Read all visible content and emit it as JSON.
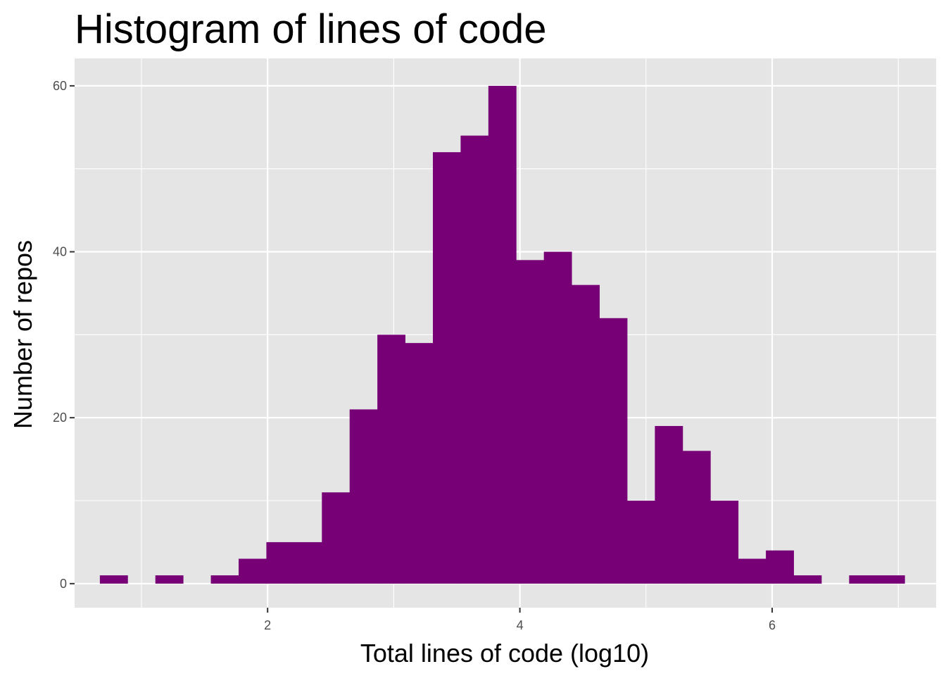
{
  "chart_data": {
    "type": "bar",
    "title": "Histogram of lines of code",
    "xlabel": "Total lines of code (log10)",
    "ylabel": "Number of repos",
    "xlim": [
      0.47,
      7.3
    ],
    "ylim": [
      -2.9,
      63.3
    ],
    "x_ticks": [
      2,
      4,
      6
    ],
    "x_tick_labels": [
      "2",
      "4",
      "6"
    ],
    "y_ticks": [
      0,
      20,
      40,
      60
    ],
    "y_tick_labels": [
      "0",
      "20",
      "40",
      "60"
    ],
    "bin_width": 0.2196,
    "bin_centers": [
      0.78,
      1.0,
      1.22,
      1.44,
      1.66,
      1.88,
      2.1,
      2.32,
      2.54,
      2.76,
      2.98,
      3.2,
      3.42,
      3.64,
      3.86,
      4.08,
      4.3,
      4.52,
      4.74,
      4.96,
      5.18,
      5.4,
      5.62,
      5.84,
      6.06,
      6.28,
      6.5,
      6.72,
      6.94
    ],
    "values": [
      1,
      0,
      1,
      0,
      1,
      3,
      5,
      5,
      11,
      21,
      30,
      29,
      52,
      54,
      60,
      39,
      40,
      36,
      32,
      10,
      19,
      16,
      10,
      3,
      4,
      1,
      0,
      1,
      1
    ],
    "grid": true,
    "colors": {
      "bar": "#770077",
      "panel": "#e5e5e5",
      "grid": "#ffffff",
      "tick": "#333333"
    }
  }
}
